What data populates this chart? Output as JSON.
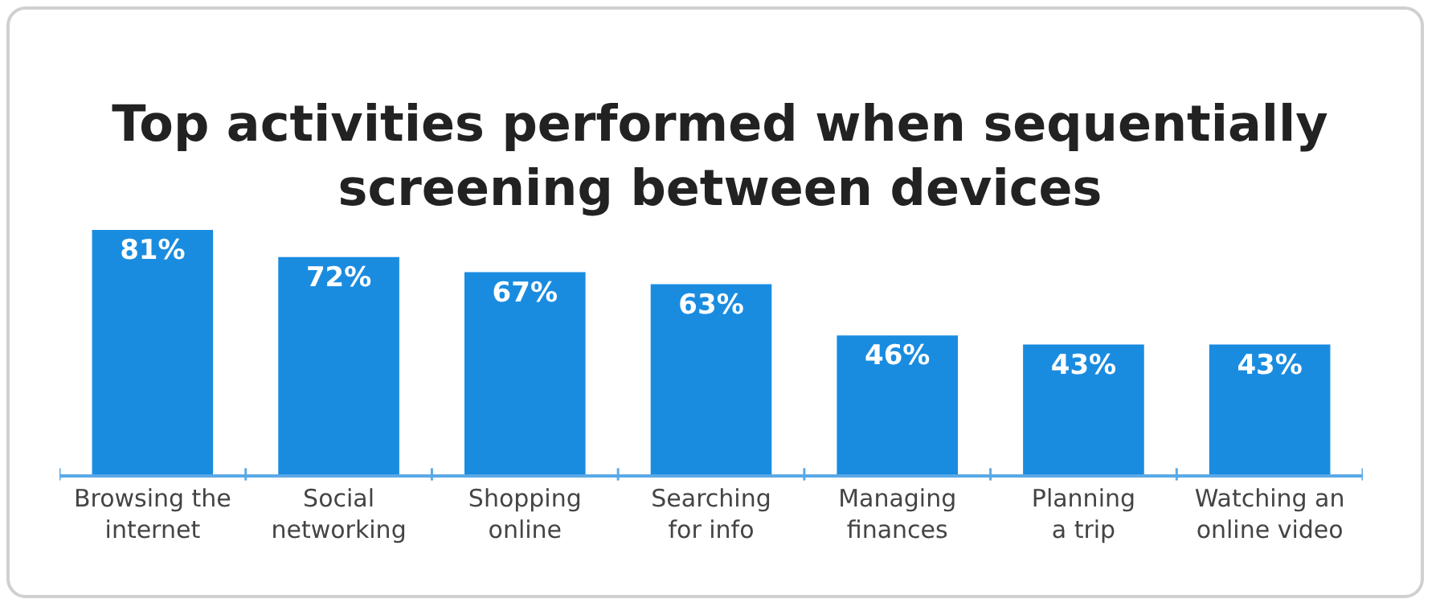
{
  "chart_data": {
    "type": "bar",
    "title": "Top activities performed when sequentially screening between devices",
    "categories": [
      "Browsing the internet",
      "Social networking",
      "Shopping online",
      "Searching for info",
      "Managing finances",
      "Planning a trip",
      "Watching an online video"
    ],
    "values": [
      81,
      72,
      67,
      63,
      46,
      43,
      43
    ],
    "value_labels": [
      "81%",
      "72%",
      "67%",
      "63%",
      "46%",
      "43%",
      "43%"
    ],
    "color": "#1a8ce0"
  }
}
